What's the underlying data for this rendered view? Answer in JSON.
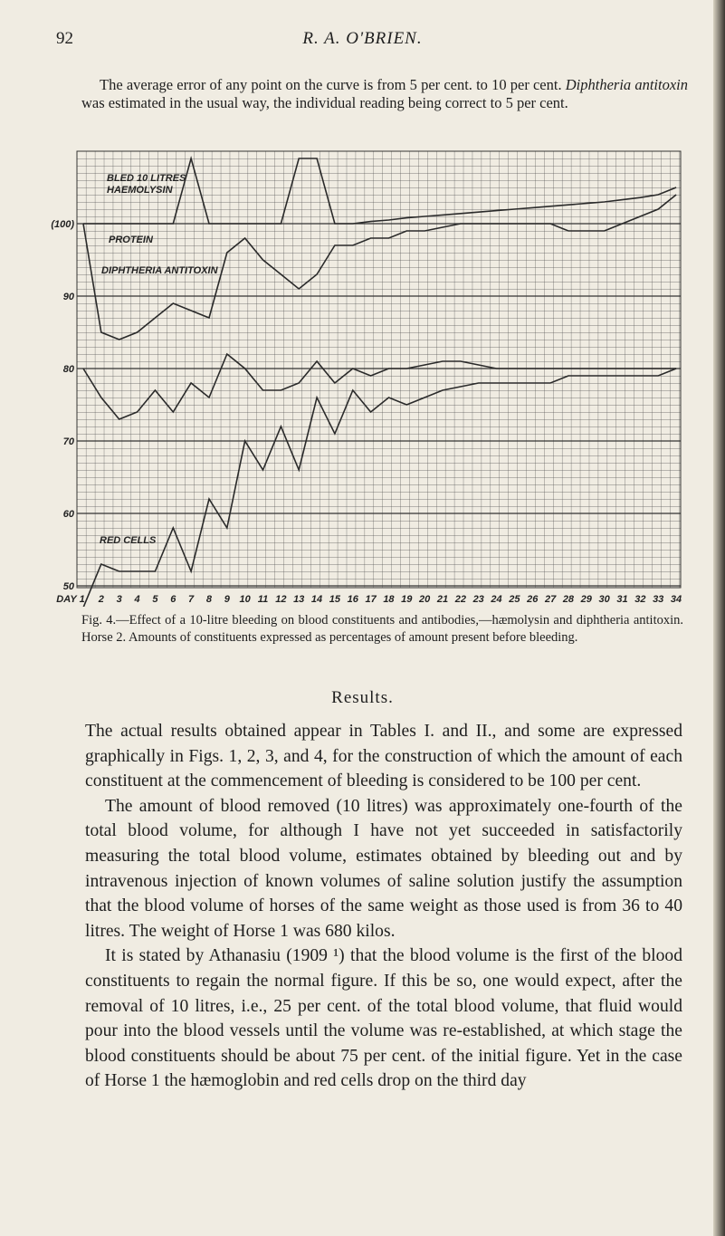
{
  "header": {
    "page_number": "92",
    "running_head": "R. A. O'BRIEN."
  },
  "intro": {
    "text_1": "The average error of any point on the curve is from 5 per cent. to 10 per cent. ",
    "italic": "Diphtheria antitoxin",
    "text_2": " was estimated in the usual way, the individual reading being correct to 5 per cent."
  },
  "chart_data": {
    "type": "line",
    "categories": [
      "DAY 1",
      "2",
      "3",
      "4",
      "5",
      "6",
      "7",
      "8",
      "9",
      "10",
      "11",
      "12",
      "13",
      "14",
      "15",
      "16",
      "17",
      "18",
      "19",
      "20",
      "21",
      "22",
      "23",
      "24",
      "25",
      "26",
      "27",
      "28",
      "29",
      "30",
      "31",
      "32",
      "33",
      "34"
    ],
    "annotations": [
      "BLED 10 LITRES"
    ],
    "series": [
      {
        "name": "HAEMOLYSIN",
        "color": "#2a2a2a",
        "values": [
          100,
          100,
          100,
          100,
          100,
          100,
          109,
          100,
          100,
          100,
          100,
          100,
          109,
          109,
          100,
          100,
          100.3,
          100.5,
          100.8,
          101,
          101.2,
          101.4,
          101.6,
          101.8,
          102,
          102.2,
          102.4,
          102.6,
          102.8,
          103,
          103.3,
          103.6,
          104,
          105
        ]
      },
      {
        "name": "PROTEIN",
        "color": "#2a2a2a",
        "values": [
          100,
          85,
          84,
          85,
          87,
          89,
          88,
          87,
          96,
          98,
          95,
          93,
          91,
          93,
          97,
          97,
          98,
          98,
          99,
          99,
          99.5,
          100,
          100,
          100,
          100,
          100,
          100,
          99,
          99,
          99,
          100,
          101,
          102,
          104
        ]
      },
      {
        "name": "DIPHTHERIA ANTITOXIN",
        "color": "#2a2a2a",
        "values": [
          80,
          76,
          73,
          74,
          77,
          74,
          78,
          76,
          82,
          80,
          77,
          77,
          78,
          81,
          78,
          80,
          79,
          80,
          80,
          80.5,
          81,
          81,
          80.5,
          80,
          80,
          80,
          80,
          80,
          80,
          80,
          80,
          80,
          80,
          80
        ]
      },
      {
        "name": "RED CELLS",
        "color": "#2a2a2a",
        "values": [
          47,
          53,
          52,
          52,
          52,
          58,
          52,
          62,
          58,
          70,
          66,
          72,
          66,
          76,
          71,
          77,
          74,
          76,
          75,
          76,
          77,
          77.5,
          78,
          78,
          78,
          78,
          78,
          79,
          79,
          79,
          79,
          79,
          79,
          80
        ]
      }
    ],
    "ylim": [
      49.75,
      110
    ],
    "yticks": [
      50,
      60,
      70,
      80,
      90,
      {
        "value": 100,
        "label": "(100)"
      }
    ],
    "grid": true
  },
  "caption": "Fig. 4.—Effect of a 10-litre bleeding on blood constituents and antibodies,—hæmolysin and diphtheria antitoxin. Horse 2. Amounts of constituents expressed as percentages of amount present before bleeding.",
  "section_title": "Results.",
  "paragraphs": [
    "The actual results obtained appear in Tables I. and II., and some are expressed graphically in Figs. 1, 2, 3, and 4, for the construction of which the amount of each constituent at the commencement of bleeding is considered to be 100 per cent.",
    "The amount of blood removed (10 litres) was approximately one-fourth of the total blood volume, for although I have not yet succeeded in satisfactorily measuring the total blood volume, estimates obtained by bleeding out and by intravenous injection of known volumes of saline solution justify the assumption that the blood volume of horses of the same weight as those used is from 36 to 40 litres. The weight of Horse 1 was 680 kilos.",
    "It is stated by Athanasiu (1909 ¹) that the blood volume is the first of the blood constituents to regain the normal figure. If this be so, one would expect, after the removal of 10 litres, i.e., 25 per cent. of the total blood volume, that fluid would pour into the blood vessels until the volume was re-established, at which stage the blood constituents should be about 75 per cent. of the initial figure. Yet in the case of Horse 1 the hæmoglobin and red cells drop on the third day"
  ]
}
